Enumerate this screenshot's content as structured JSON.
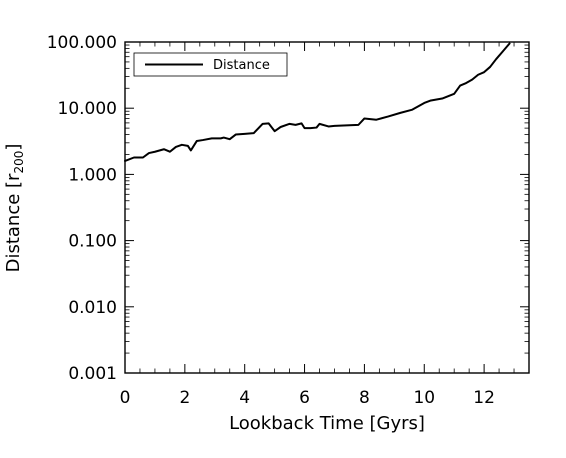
{
  "chart_data": {
    "type": "line",
    "title": "",
    "xlabel": "Lookback Time [Gyrs]",
    "ylabel": "Distance [r200]",
    "ylabel_parts": {
      "main": "Distance [r",
      "sub": "200",
      "close": "]"
    },
    "xlim": [
      0,
      13.5
    ],
    "ylim": [
      0.001,
      100
    ],
    "yscale": "log",
    "grid": false,
    "legend": {
      "position": "top-left",
      "entries": [
        "Distance"
      ]
    },
    "x_ticks": [
      {
        "value": 0,
        "label": "0"
      },
      {
        "value": 2,
        "label": "2"
      },
      {
        "value": 4,
        "label": "4"
      },
      {
        "value": 6,
        "label": "6"
      },
      {
        "value": 8,
        "label": "8"
      },
      {
        "value": 10,
        "label": "10"
      },
      {
        "value": 12,
        "label": "12"
      }
    ],
    "y_ticks": [
      {
        "value": 0.001,
        "label": "0.001"
      },
      {
        "value": 0.01,
        "label": "0.010"
      },
      {
        "value": 0.1,
        "label": "0.100"
      },
      {
        "value": 1,
        "label": "1.000"
      },
      {
        "value": 10,
        "label": "10.000"
      },
      {
        "value": 100,
        "label": "100.000"
      }
    ],
    "series": [
      {
        "name": "Distance",
        "color": "#000000",
        "x": [
          0.0,
          0.3,
          0.6,
          0.8,
          1.0,
          1.3,
          1.5,
          1.7,
          1.9,
          2.1,
          2.2,
          2.4,
          2.6,
          2.9,
          3.2,
          3.3,
          3.5,
          3.7,
          4.0,
          4.3,
          4.6,
          4.8,
          5.0,
          5.2,
          5.5,
          5.7,
          5.9,
          6.0,
          6.2,
          6.4,
          6.5,
          6.8,
          7.0,
          7.4,
          7.8,
          8.0,
          8.4,
          8.8,
          9.2,
          9.6,
          10.0,
          10.2,
          10.6,
          11.0,
          11.2,
          11.4,
          11.6,
          11.8,
          12.0,
          12.2,
          12.4,
          12.6,
          12.85
        ],
        "y": [
          1.6,
          1.8,
          1.8,
          2.1,
          2.2,
          2.4,
          2.2,
          2.6,
          2.8,
          2.7,
          2.3,
          3.2,
          3.3,
          3.5,
          3.5,
          3.6,
          3.4,
          4.0,
          4.1,
          4.2,
          5.8,
          5.9,
          4.5,
          5.2,
          5.8,
          5.6,
          5.9,
          5.0,
          5.0,
          5.1,
          5.8,
          5.3,
          5.4,
          5.5,
          5.6,
          7.0,
          6.7,
          7.5,
          8.5,
          9.5,
          12.0,
          13.0,
          14.0,
          16.5,
          22.0,
          24.0,
          27.0,
          32.0,
          35.0,
          42.0,
          55.0,
          70.0,
          95.0
        ]
      }
    ]
  }
}
